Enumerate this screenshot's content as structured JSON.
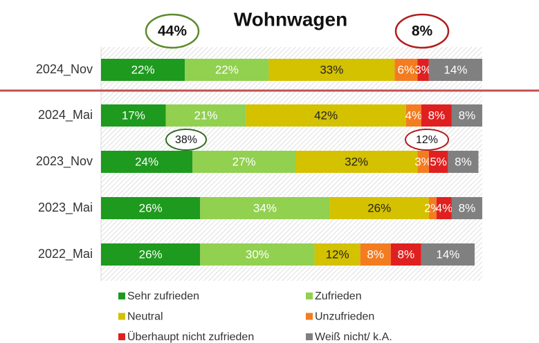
{
  "chart_data": {
    "type": "stacked-barh",
    "title": "Wohnwagen",
    "categories": [
      "2024_Nov",
      "2024_Mai",
      "2023_Nov",
      "2023_Mai",
      "2022_Mai"
    ],
    "series": [
      {
        "name": "Sehr zufrieden",
        "color": "#1e9a1e",
        "values": [
          22,
          17,
          24,
          26,
          26
        ],
        "value_labels": [
          "22%",
          "17%",
          "24%",
          "26%",
          "26%"
        ]
      },
      {
        "name": "Zufrieden",
        "color": "#92d050",
        "values": [
          22,
          21,
          27,
          34,
          30
        ],
        "value_labels": [
          "22%",
          "21%",
          "27%",
          "34%",
          "30%"
        ]
      },
      {
        "name": "Neutral",
        "color": "#d4c100",
        "values": [
          33,
          42,
          32,
          26,
          12
        ],
        "value_labels": [
          "33%",
          "42%",
          "32%",
          "26%",
          "12%"
        ]
      },
      {
        "name": "Unzufrieden",
        "color": "#f47c20",
        "values": [
          6,
          4,
          3,
          2,
          8
        ],
        "value_labels": [
          "6%",
          "4%",
          "3%",
          "2%",
          "8%"
        ]
      },
      {
        "name": "Überhaupt nicht zufrieden",
        "color": "#e02020",
        "values": [
          3,
          8,
          5,
          4,
          8
        ],
        "value_labels": [
          "3%",
          "8%",
          "5%",
          "4%",
          "8%"
        ]
      },
      {
        "name": "Weiß nicht/ k.A.",
        "color": "#808080",
        "values": [
          14,
          8,
          8,
          8,
          14
        ],
        "value_labels": [
          "14%",
          "8%",
          "8%",
          "8%",
          "14%"
        ]
      }
    ],
    "xlim": [
      0,
      100
    ],
    "annotations": [
      {
        "text": "44%",
        "color": "#5a8a2a"
      },
      {
        "text": "8%",
        "color": "#b01c1c"
      },
      {
        "text": "38%",
        "color": "#2f6e1e"
      },
      {
        "text": "12%",
        "color": "#b01c1c"
      }
    ]
  }
}
